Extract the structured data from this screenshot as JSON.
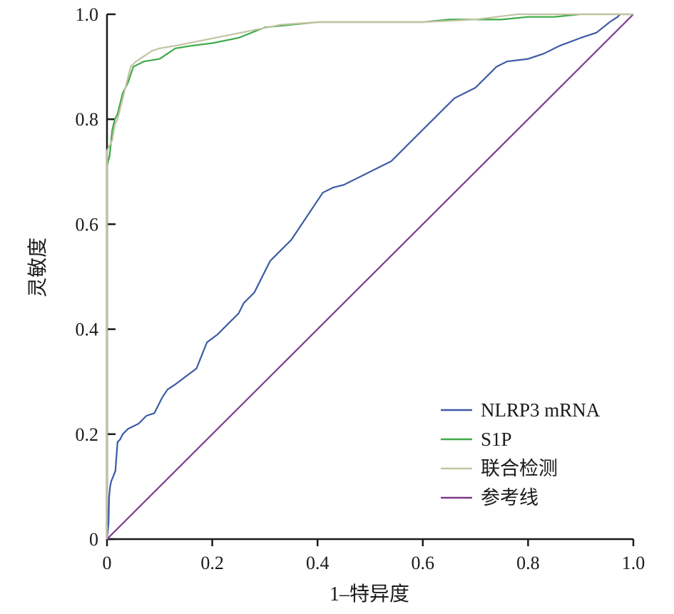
{
  "chart_data": {
    "type": "line",
    "title": "",
    "xlabel": "1–特异度",
    "ylabel": "灵敏度",
    "xlim": [
      0,
      1
    ],
    "ylim": [
      0,
      1
    ],
    "x_ticks": [
      "0",
      "0.2",
      "0.4",
      "0.6",
      "0.8",
      "1.0"
    ],
    "y_ticks": [
      "0",
      "0.2",
      "0.4",
      "0.6",
      "0.8",
      "1.0"
    ],
    "grid": false,
    "legend_position": "bottom-right",
    "series": [
      {
        "name": "NLRP3 mRNA",
        "color": "#3b5ba5",
        "x": [
          0,
          0.003,
          0.004,
          0.006,
          0.008,
          0.012,
          0.016,
          0.02,
          0.025,
          0.03,
          0.04,
          0.05,
          0.06,
          0.075,
          0.09,
          0.105,
          0.115,
          0.13,
          0.15,
          0.17,
          0.18,
          0.19,
          0.21,
          0.23,
          0.25,
          0.26,
          0.28,
          0.3,
          0.31,
          0.33,
          0.35,
          0.37,
          0.39,
          0.41,
          0.43,
          0.45,
          0.47,
          0.49,
          0.5,
          0.52,
          0.54,
          0.56,
          0.58,
          0.6,
          0.62,
          0.64,
          0.66,
          0.68,
          0.7,
          0.72,
          0.74,
          0.76,
          0.8,
          0.83,
          0.86,
          0.9,
          0.93,
          0.955,
          0.97,
          0.975
        ],
        "y": [
          0,
          0.03,
          0.08,
          0.1,
          0.11,
          0.12,
          0.13,
          0.185,
          0.19,
          0.2,
          0.21,
          0.215,
          0.22,
          0.235,
          0.24,
          0.27,
          0.285,
          0.295,
          0.31,
          0.325,
          0.35,
          0.375,
          0.39,
          0.41,
          0.43,
          0.45,
          0.47,
          0.51,
          0.53,
          0.55,
          0.57,
          0.6,
          0.63,
          0.66,
          0.67,
          0.675,
          0.685,
          0.695,
          0.7,
          0.71,
          0.72,
          0.74,
          0.76,
          0.78,
          0.8,
          0.82,
          0.84,
          0.85,
          0.86,
          0.88,
          0.9,
          0.91,
          0.915,
          0.925,
          0.94,
          0.955,
          0.965,
          0.985,
          0.995,
          1.0
        ]
      },
      {
        "name": "S1P",
        "color": "#3daa48",
        "x": [
          0,
          0.002,
          0.005,
          0.01,
          0.015,
          0.02,
          0.025,
          0.03,
          0.04,
          0.05,
          0.07,
          0.1,
          0.13,
          0.16,
          0.2,
          0.25,
          0.3,
          0.35,
          0.4,
          0.5,
          0.6,
          0.65,
          0.7,
          0.75,
          0.8,
          0.85,
          0.9,
          1.0
        ],
        "y": [
          0.71,
          0.72,
          0.73,
          0.78,
          0.8,
          0.81,
          0.83,
          0.85,
          0.87,
          0.9,
          0.91,
          0.915,
          0.935,
          0.94,
          0.945,
          0.955,
          0.975,
          0.98,
          0.985,
          0.985,
          0.985,
          0.99,
          0.99,
          0.99,
          0.995,
          0.995,
          1.0,
          1.0
        ]
      },
      {
        "name": "联合检测",
        "color": "#c3c3a2",
        "x": [
          0,
          0,
          0.005,
          0.01,
          0.015,
          0.02,
          0.025,
          0.03,
          0.035,
          0.045,
          0.055,
          0.07,
          0.085,
          0.1,
          0.13,
          0.18,
          0.23,
          0.28,
          0.33,
          0.4,
          0.5,
          0.6,
          0.7,
          0.74,
          0.78,
          0.9,
          1.0
        ],
        "y": [
          0,
          0.74,
          0.75,
          0.76,
          0.79,
          0.8,
          0.82,
          0.84,
          0.86,
          0.9,
          0.91,
          0.92,
          0.93,
          0.935,
          0.94,
          0.95,
          0.96,
          0.97,
          0.98,
          0.985,
          0.985,
          0.985,
          0.99,
          0.995,
          1.0,
          1.0,
          1.0
        ]
      },
      {
        "name": "参考线",
        "color": "#7e3b8c",
        "x": [
          0,
          1
        ],
        "y": [
          0,
          1
        ]
      }
    ]
  }
}
